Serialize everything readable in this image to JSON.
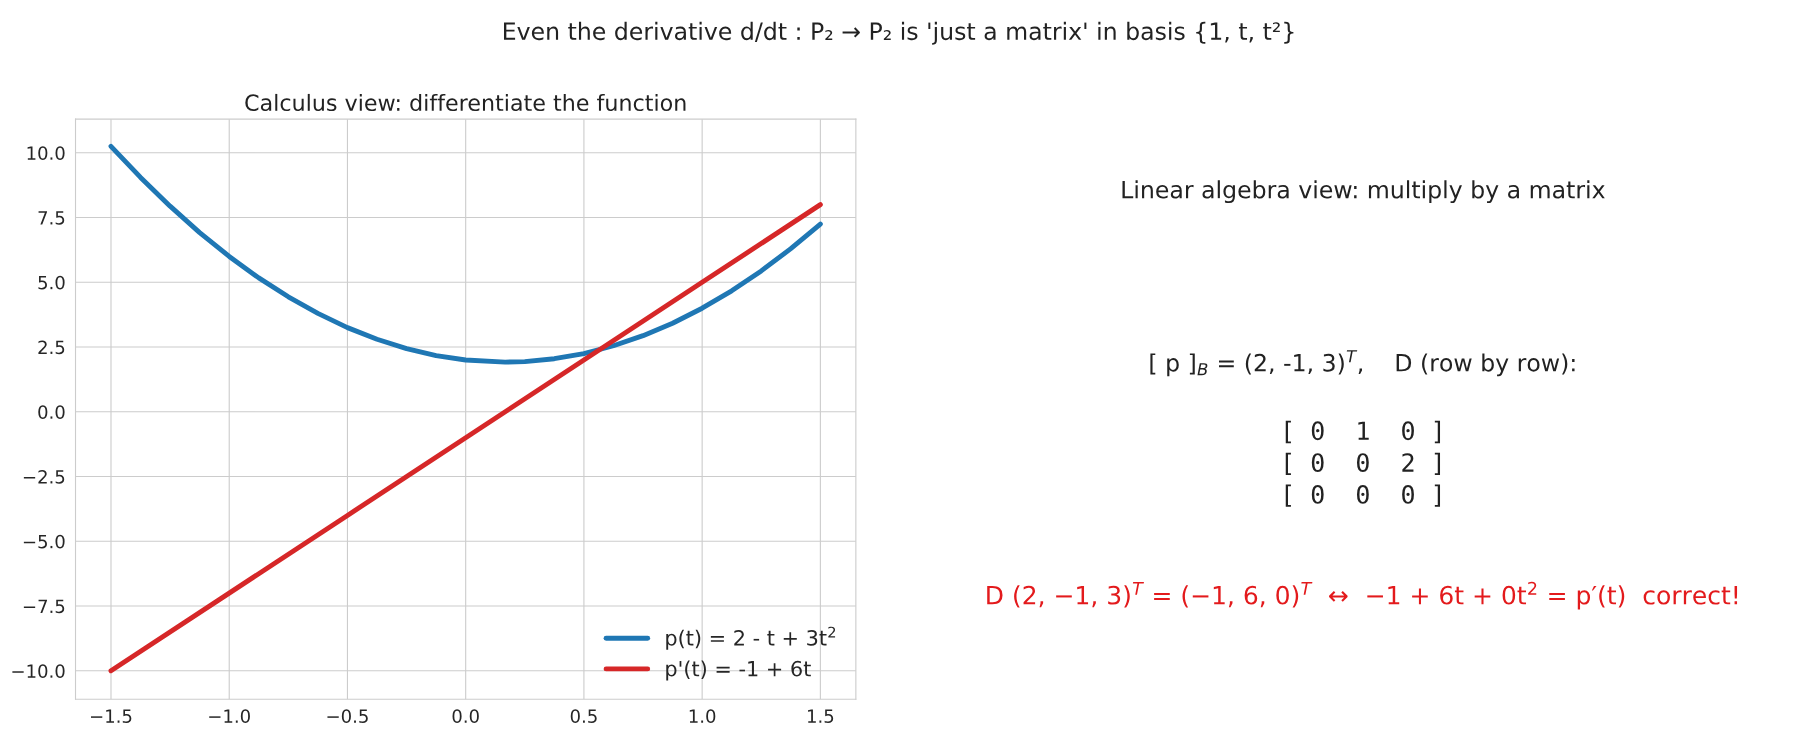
{
  "chart_data": [
    {
      "type": "line",
      "title": "Even the derivative d/dt : P₂ → P₂ is 'just a matrix' in basis {1, t, t²}",
      "subtitle": "Calculus view: differentiate the function",
      "x": [
        -1.5,
        -1.375,
        -1.25,
        -1.125,
        -1.0,
        -0.875,
        -0.75,
        -0.625,
        -0.5,
        -0.375,
        -0.25,
        -0.125,
        0.0,
        0.1667,
        0.25,
        0.375,
        0.5,
        0.625,
        0.75,
        0.875,
        1.0,
        1.125,
        1.25,
        1.375,
        1.5
      ],
      "series": [
        {
          "name": "p(t) = 2 - t + 3t$^{2}$",
          "color": "#1f77b4",
          "values": [
            10.25,
            9.05,
            7.94,
            6.92,
            6.0,
            5.17,
            4.44,
            3.8,
            3.25,
            2.8,
            2.44,
            2.17,
            2.0,
            1.92,
            1.94,
            2.05,
            2.25,
            2.55,
            2.94,
            3.42,
            4.0,
            4.67,
            5.44,
            6.3,
            7.25
          ]
        },
        {
          "name": "p'(t) = -1 + 6t",
          "color": "#d62728",
          "x": [
            -1.5,
            -1.0,
            -0.5,
            0.0,
            0.5,
            1.0,
            1.5
          ],
          "values": [
            -10.0,
            -7.0,
            -4.0,
            -1.0,
            2.0,
            5.0,
            8.0
          ]
        }
      ],
      "xlim": [
        -1.65,
        1.65
      ],
      "ylim": [
        -11.1,
        11.3
      ],
      "xticks": [
        {
          "value": -1.5,
          "label": "−1.5"
        },
        {
          "value": -1.0,
          "label": "−1.0"
        },
        {
          "value": -0.5,
          "label": "−0.5"
        },
        {
          "value": 0.0,
          "label": "0.0"
        },
        0.5,
        {
          "value": 1.0,
          "label": "1.0"
        },
        1.5
      ],
      "yticks": [
        {
          "value": -10,
          "label": "−10.0"
        },
        {
          "value": -7.5,
          "label": "−7.5"
        },
        {
          "value": -5,
          "label": "−5.0"
        },
        {
          "value": -2.5,
          "label": "−2.5"
        },
        {
          "value": 0,
          "label": "0.0"
        },
        2.5,
        {
          "value": 5,
          "label": "5.0"
        },
        7.5,
        {
          "value": 10,
          "label": "10.0"
        }
      ],
      "grid": true,
      "legend": "bottom right",
      "marker": "none",
      "line_style": "solid"
    },
    {
      "type": "other",
      "title": "Linear algebra view: multiply by a matrix",
      "annotations": [
        "[ p ]$_{B}$ = (2, -1, 3)$^{T}$,    D (row by row):",
        "[ 0  1  0 ]",
        "[ 0  0  2 ]",
        "[ 0  0  0 ]",
        "D (2, −1, 3)$^{T}$ = (−1, 6, 0)$^{T}$  ↔  −1 + 6t + 0t$^{2}$ = p′(t)  correct!"
      ]
    }
  ]
}
